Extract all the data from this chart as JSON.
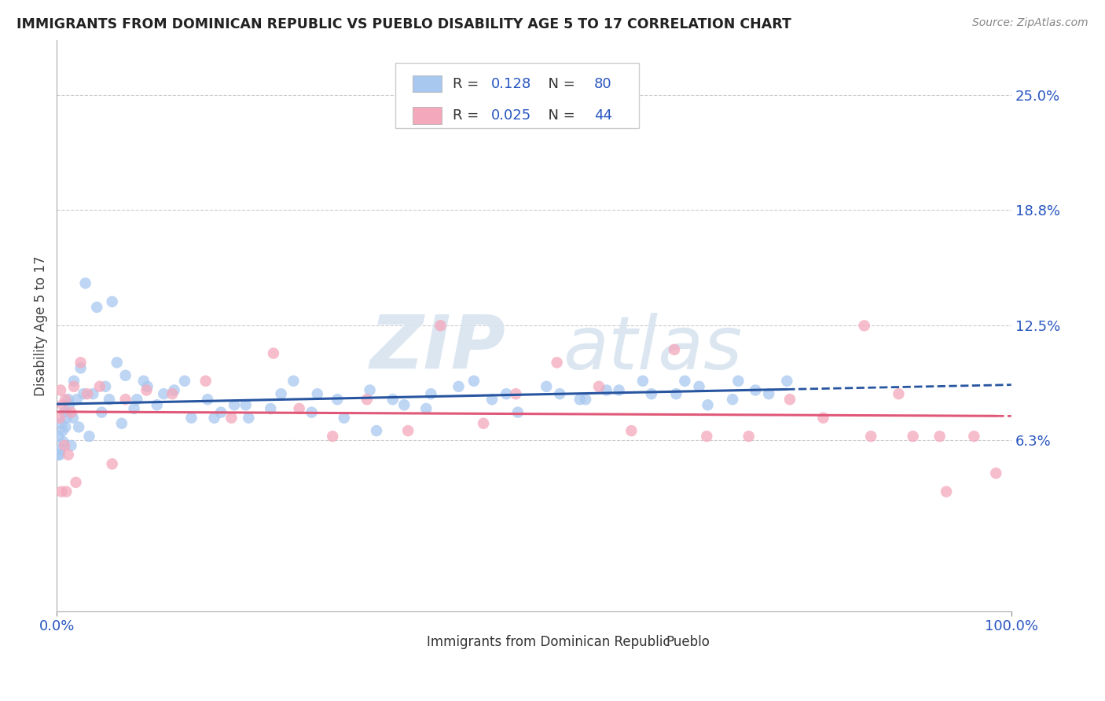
{
  "title": "IMMIGRANTS FROM DOMINICAN REPUBLIC VS PUEBLO DISABILITY AGE 5 TO 17 CORRELATION CHART",
  "source": "Source: ZipAtlas.com",
  "ylabel": "Disability Age 5 to 17",
  "xlim": [
    0,
    100
  ],
  "ylim": [
    -3,
    28
  ],
  "ytick_vals": [
    6.3,
    12.5,
    18.8,
    25.0
  ],
  "ytick_labels": [
    "6.3%",
    "12.5%",
    "18.8%",
    "25.0%"
  ],
  "series1_color": "#A8C8F0",
  "series2_color": "#F4A8BC",
  "trend1_color": "#2855A0",
  "trend2_color": "#E05878",
  "R1": "0.128",
  "N1": "80",
  "R2": "0.025",
  "N2": "44",
  "watermark_zip": "ZIP",
  "watermark_atlas": "atlas",
  "background_color": "#ffffff",
  "grid_color": "#cccccc",
  "legend_text_color": "#2855C0",
  "axis_label_color": "#2855C0",
  "blue_x": [
    0.2,
    0.3,
    0.4,
    0.5,
    0.6,
    0.7,
    0.8,
    0.9,
    1.0,
    1.2,
    1.3,
    1.5,
    1.7,
    1.8,
    2.1,
    2.3,
    2.5,
    2.8,
    3.0,
    3.4,
    3.8,
    4.2,
    4.7,
    5.1,
    5.5,
    5.8,
    6.3,
    6.8,
    7.2,
    8.1,
    8.4,
    9.1,
    9.5,
    10.5,
    11.2,
    12.3,
    13.4,
    14.1,
    15.8,
    16.5,
    17.2,
    18.6,
    19.8,
    20.1,
    22.4,
    23.5,
    24.8,
    26.7,
    27.3,
    29.4,
    30.1,
    32.8,
    33.5,
    35.2,
    36.4,
    38.7,
    39.2,
    42.1,
    43.7,
    45.6,
    47.1,
    48.3,
    51.3,
    52.7,
    54.8,
    55.4,
    57.6,
    58.9,
    61.4,
    62.3,
    64.9,
    65.8,
    67.3,
    68.2,
    70.8,
    71.4,
    73.2,
    74.6,
    76.5,
    0.1
  ],
  "blue_y": [
    6.5,
    5.5,
    5.8,
    7.2,
    6.8,
    6.2,
    7.8,
    7.0,
    7.5,
    8.5,
    8.2,
    6.0,
    7.5,
    9.5,
    8.5,
    7.0,
    10.2,
    8.8,
    14.8,
    6.5,
    8.8,
    13.5,
    7.8,
    9.2,
    8.5,
    13.8,
    10.5,
    7.2,
    9.8,
    8.0,
    8.5,
    9.5,
    9.2,
    8.2,
    8.8,
    9.0,
    9.5,
    7.5,
    8.5,
    7.5,
    7.8,
    8.2,
    8.2,
    7.5,
    8.0,
    8.8,
    9.5,
    7.8,
    8.8,
    8.5,
    7.5,
    9.0,
    6.8,
    8.5,
    8.2,
    8.0,
    8.8,
    9.2,
    9.5,
    8.5,
    8.8,
    7.8,
    9.2,
    8.8,
    8.5,
    8.5,
    9.0,
    9.0,
    9.5,
    8.8,
    8.8,
    9.5,
    9.2,
    8.2,
    8.5,
    9.5,
    9.0,
    8.8,
    9.5,
    5.5
  ],
  "pink_x": [
    0.3,
    0.4,
    0.5,
    0.6,
    0.8,
    0.9,
    1.0,
    1.2,
    1.5,
    1.8,
    2.0,
    2.5,
    3.2,
    4.5,
    5.8,
    7.2,
    9.4,
    12.1,
    15.6,
    18.3,
    22.7,
    25.4,
    28.9,
    32.5,
    36.8,
    40.2,
    44.7,
    48.1,
    52.4,
    56.8,
    60.2,
    64.7,
    68.1,
    72.5,
    76.8,
    80.3,
    84.6,
    85.3,
    88.2,
    89.7,
    92.5,
    93.2,
    96.1,
    98.4
  ],
  "pink_y": [
    7.5,
    9.0,
    3.5,
    8.2,
    6.0,
    8.5,
    3.5,
    5.5,
    7.8,
    9.2,
    4.0,
    10.5,
    8.8,
    9.2,
    5.0,
    8.5,
    9.0,
    8.8,
    9.5,
    7.5,
    11.0,
    8.0,
    6.5,
    8.5,
    6.8,
    12.5,
    7.2,
    8.8,
    10.5,
    9.2,
    6.8,
    11.2,
    6.5,
    6.5,
    8.5,
    7.5,
    12.5,
    6.5,
    8.8,
    6.5,
    6.5,
    3.5,
    6.5,
    4.5
  ]
}
